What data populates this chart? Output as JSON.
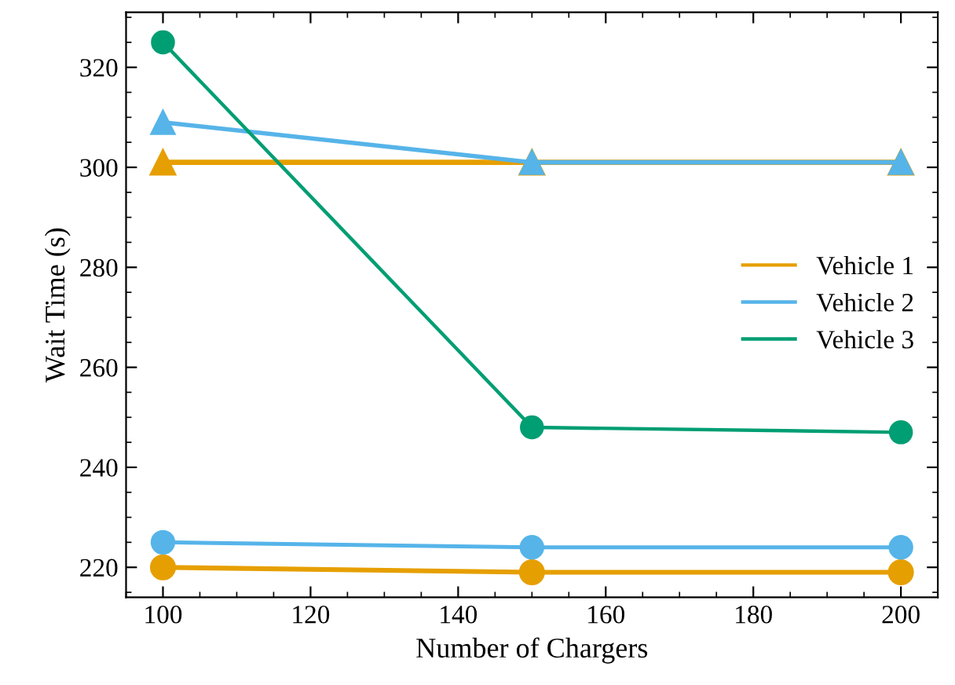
{
  "chart_data": {
    "type": "line",
    "xlabel": "Number of Chargers",
    "ylabel": "Wait Time (s)",
    "x": [
      100,
      150,
      200
    ],
    "series": [
      {
        "name": "Vehicle 1",
        "color": "#e69f00",
        "marker": "triangle",
        "values": [
          301,
          301,
          301
        ]
      },
      {
        "color": "#e69f00",
        "marker": "circle",
        "values": [
          220,
          219,
          219
        ]
      },
      {
        "name": "Vehicle 2",
        "color": "#56b4e9",
        "marker": "triangle",
        "values": [
          309,
          301,
          301
        ]
      },
      {
        "color": "#56b4e9",
        "marker": "circle",
        "values": [
          225,
          224,
          224
        ]
      },
      {
        "name": "Vehicle 3",
        "color": "#009e73",
        "marker": "circle",
        "values": [
          325,
          248,
          247
        ]
      }
    ],
    "xlim": [
      95,
      205
    ],
    "ylim": [
      214,
      331
    ],
    "xticks": [
      100,
      120,
      140,
      160,
      180,
      200
    ],
    "yticks": [
      220,
      240,
      260,
      280,
      300,
      320
    ],
    "grid": false,
    "legend": "center right",
    "line_style": "solid"
  }
}
